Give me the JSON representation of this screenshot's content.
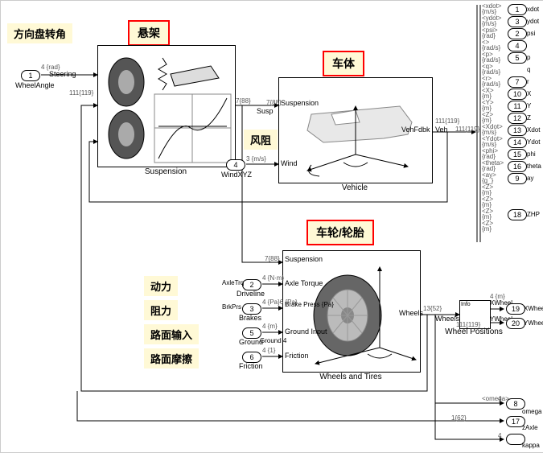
{
  "annotations": {
    "steering_angle": "方向盘转角",
    "suspension": "悬架",
    "vehicle_body": "车体",
    "wind_resist": "风阻",
    "wheel_tire": "车轮/轮胎",
    "power": "动力",
    "resistance": "阻力",
    "road_input": "路面输入",
    "road_friction": "路面摩擦"
  },
  "blocks": {
    "suspension": {
      "title": "Suspension"
    },
    "vehicle": {
      "title": "Vehicle"
    },
    "wheels": {
      "title": "Wheels and Tires"
    },
    "wheel_pos": {
      "title": "Wheel Positions"
    }
  },
  "inports": {
    "wheel_angle": {
      "num": "1",
      "name": "WheelAngle",
      "unit": "4 {rad}"
    },
    "wind": {
      "num": "4",
      "name": "WindXYZ",
      "unit": "3 {m/s}"
    },
    "driveline": {
      "num": "2",
      "name": "Driveline",
      "unit": "4 {N·m}",
      "port": "Axle Torque"
    },
    "brakes": {
      "num": "3",
      "name": "Brakes",
      "unit": "4 {Pa}6 {Pa}",
      "port": "Brake Press {Pa}"
    },
    "ground": {
      "num": "5",
      "name": "Ground",
      "unit": "4 {m}",
      "port": "Ground Input"
    },
    "friction": {
      "num": "6",
      "name": "Friction",
      "unit": "4 {1}",
      "port": "Friction"
    }
  },
  "susp_ports": {
    "axle_trq": "AxleTrq",
    "brk_prs": "BrkPrs",
    "susp_in": "Susp",
    "susp_out": "Suspension",
    "ground4": "Ground  4",
    "wind": "Wind",
    "veh_fdbk": "VehFdbk",
    "veh": "Veh",
    "wheels": "Wheels"
  },
  "outports": {
    "list": [
      {
        "sig": "<xdot>",
        "unit": "{m/s}",
        "num": "1",
        "name": "xdot"
      },
      {
        "sig": "<ydot>",
        "unit": "{m/s}",
        "num": "3",
        "name": "ydot"
      },
      {
        "sig": "<psi>",
        "unit": "{rad}",
        "num": "2",
        "name": "psi"
      },
      {
        "sig": "<>",
        "unit": "{rad/s}",
        "num": "4",
        "name": ""
      },
      {
        "sig": "<p>",
        "unit": "{rad/s}",
        "num": "5",
        "name": "p"
      },
      {
        "sig": "<q>",
        "unit": "{rad/s}",
        "num": "",
        "name": "q"
      },
      {
        "sig": "<r>",
        "unit": "{rad/s}",
        "num": "7",
        "name": "r"
      },
      {
        "sig": "<X>",
        "unit": "{m}",
        "num": "10",
        "name": "X"
      },
      {
        "sig": "<Y>",
        "unit": "{m}",
        "num": "11",
        "name": "Y"
      },
      {
        "sig": "<Z>",
        "unit": "{m}",
        "num": "12",
        "name": "Z"
      },
      {
        "sig": "<Xdot>",
        "unit": "{m/s}",
        "num": "13",
        "name": "Xdot"
      },
      {
        "sig": "<Ydot>",
        "unit": "{m/s}",
        "num": "14",
        "name": "Ydot"
      },
      {
        "sig": "<phi>",
        "unit": "{rad}",
        "num": "15",
        "name": "phi"
      },
      {
        "sig": "<theta>",
        "unit": "{rad}",
        "num": "16",
        "name": "theta"
      },
      {
        "sig": "<ay>",
        "unit": "{g_}",
        "num": "9",
        "name": "ay"
      },
      {
        "sig": "<Z>",
        "unit": "{m}",
        "num": "",
        "name": ""
      },
      {
        "sig": "<Z>",
        "unit": "{m}",
        "num": "",
        "name": ""
      },
      {
        "sig": "<Z>",
        "unit": "{m}",
        "num": "18",
        "name": "ZHP"
      },
      {
        "sig": "<Z>",
        "unit": "{m}",
        "num": "",
        "name": ""
      }
    ],
    "xwheel": {
      "num": "19",
      "name": "XWheel",
      "sig": "XWheel",
      "unit": "4 {m}"
    },
    "ywheel": {
      "num": "20",
      "name": "YWheel",
      "sig": "YWheel",
      "unit": "4 {m}"
    },
    "omega": {
      "num": "8",
      "name": "omega",
      "sig": "<omega>",
      "unit": "4"
    },
    "zaxle": {
      "num": "17",
      "name": "zAxle",
      "unit": "1{62}"
    },
    "kappa": {
      "num": "",
      "name": "kappa",
      "unit": "4"
    }
  },
  "sig_dims": {
    "s788": "7{88}",
    "s111_119": "111{119}",
    "s1352": "13{52}",
    "s162": "1{62}"
  },
  "style": {
    "annotation_bg": "#fff9d6",
    "annotation_border": "#ff0000",
    "wire_color": "#000000",
    "frame_color": "#000000"
  }
}
